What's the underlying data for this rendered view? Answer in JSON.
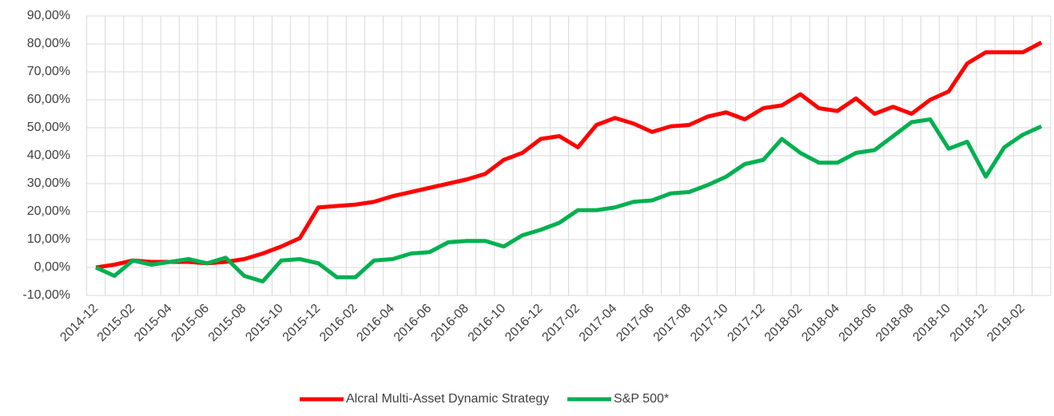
{
  "chart_data": {
    "type": "line",
    "categories": [
      "2014-12",
      null,
      "2015-02",
      null,
      "2015-04",
      null,
      "2015-06",
      null,
      "2015-08",
      null,
      "2015-10",
      null,
      "2015-12",
      null,
      "2016-02",
      null,
      "2016-04",
      null,
      "2016-06",
      null,
      "2016-08",
      null,
      "2016-10",
      null,
      "2016-12",
      null,
      "2017-02",
      null,
      "2017-04",
      null,
      "2017-06",
      null,
      "2017-08",
      null,
      "2017-10",
      null,
      "2017-12",
      null,
      "2018-02",
      null,
      "2018-04",
      null,
      "2018-06",
      null,
      "2018-08",
      null,
      "2018-10",
      null,
      "2018-12",
      null,
      "2019-02",
      null
    ],
    "series": [
      {
        "name": "Alcral Multi-Asset Dynamic Strategy",
        "color": "#ff0000",
        "values": [
          0,
          1,
          2.5,
          2,
          2,
          2,
          1.5,
          2,
          3,
          5,
          7.5,
          10.5,
          21.5,
          22,
          22.5,
          23.5,
          25.5,
          27,
          28.5,
          30,
          31.5,
          33.5,
          38.5,
          41,
          46,
          47,
          43,
          51,
          53.5,
          51.5,
          48.5,
          50.5,
          51,
          54,
          55.5,
          53,
          57,
          58,
          62,
          57,
          56,
          60.5,
          55,
          57.5,
          55,
          60,
          63,
          73,
          77,
          77,
          77,
          80.5
        ]
      },
      {
        "name": "S&P 500*",
        "color": "#00b050",
        "values": [
          0,
          -3,
          2.5,
          1,
          2,
          3,
          1.5,
          3.5,
          -3,
          -5,
          2.5,
          3,
          1.5,
          -3.5,
          -3.5,
          2.5,
          3,
          5,
          5.5,
          9,
          9.5,
          9.5,
          7.5,
          11.5,
          13.5,
          16,
          20.5,
          20.5,
          21.5,
          23.5,
          24,
          26.5,
          27,
          29.5,
          32.5,
          37,
          38.5,
          46,
          41,
          37.5,
          37.5,
          41,
          42,
          47,
          52,
          53,
          42.5,
          45,
          32.5,
          43,
          47.5,
          50.5
        ]
      }
    ],
    "ylim": [
      -10,
      90
    ],
    "yticks": [
      {
        "value": -10,
        "label": "-10,00%"
      },
      {
        "value": 0,
        "label": "0,00%"
      },
      {
        "value": 10,
        "label": "10,00%"
      },
      {
        "value": 20,
        "label": "20,00%"
      },
      {
        "value": 30,
        "label": "30,00%"
      },
      {
        "value": 40,
        "label": "40,00%"
      },
      {
        "value": 50,
        "label": "50,00%"
      },
      {
        "value": 60,
        "label": "60,00%"
      },
      {
        "value": 70,
        "label": "70,00%"
      },
      {
        "value": 80,
        "label": "80,00%"
      },
      {
        "value": 90,
        "label": "90,00%"
      }
    ],
    "grid": true,
    "legend": "bottom"
  }
}
